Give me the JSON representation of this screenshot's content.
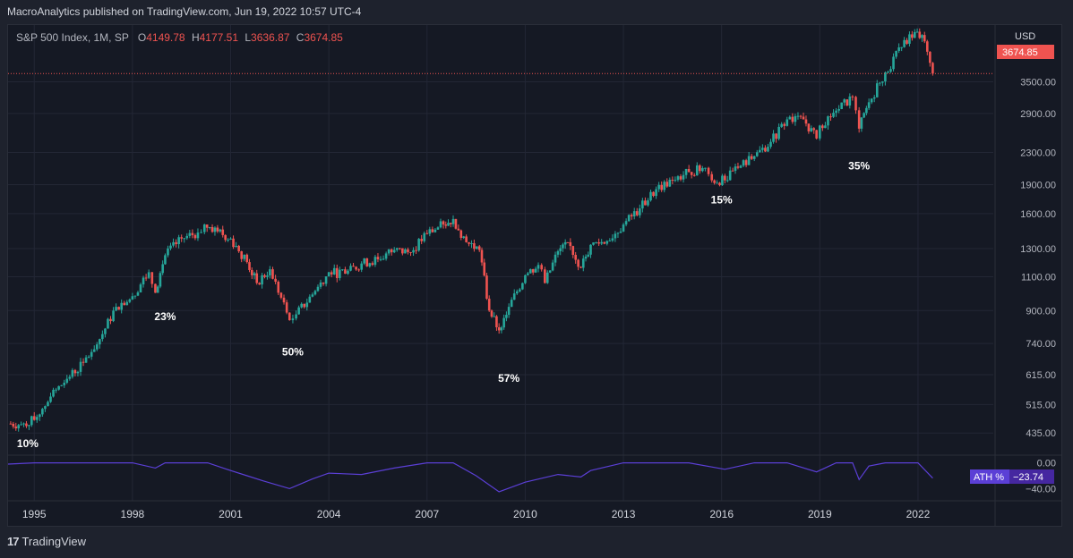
{
  "header": {
    "publisher": "MacroAnalytics published on TradingView.com, Jun 19, 2022 10:57 UTC-4"
  },
  "legend": {
    "symbol": "S&P 500 Index, 1M, SP",
    "open_label": "O",
    "open": "4149.78",
    "high_label": "H",
    "high": "4177.51",
    "low_label": "L",
    "low": "3636.87",
    "close_label": "C",
    "close": "3674.85"
  },
  "price_scale": {
    "currency": "USD",
    "last_price": "3674.85"
  },
  "ath_panel": {
    "label": "ATH %",
    "value": "−23.74"
  },
  "footer": {
    "brand": "TradingView",
    "logo": "17"
  },
  "colors": {
    "up": "#26a69a",
    "down": "#ef5350",
    "indicator": "#5b3fd6",
    "background": "#151924",
    "grid": "#232735"
  },
  "chart_data": [
    {
      "type": "candlestick",
      "title": "S&P 500 Index, 1M, SP",
      "scale": "log",
      "y_ticks": [
        "435.00",
        "515.00",
        "615.00",
        "740.00",
        "900.00",
        "1100.00",
        "1300.00",
        "1600.00",
        "1900.00",
        "2300.00",
        "2900.00",
        "3500.00"
      ],
      "x_ticks": [
        "1995",
        "1998",
        "2001",
        "2004",
        "2007",
        "2010",
        "2013",
        "2016",
        "2019",
        "2022"
      ],
      "ylim": [
        400,
        4800
      ],
      "xlim": [
        1994.2,
        2024.3
      ],
      "grid": true,
      "series": [
        {
          "x": [
            1994.2,
            1994.6,
            1995.0,
            1995.5,
            1996.0,
            1996.5,
            1997.0,
            1997.5,
            1998.0,
            1998.5,
            1998.7,
            1999.0,
            1999.5,
            2000.0,
            2000.2,
            2000.6,
            2001.0,
            2001.5,
            2001.8,
            2002.2,
            2002.8,
            2003.0,
            2003.5,
            2004.0,
            2004.5,
            2005.0,
            2005.5,
            2006.0,
            2006.5,
            2007.0,
            2007.5,
            2007.8,
            2008.2,
            2008.6,
            2008.9,
            2009.2,
            2009.5,
            2010.0,
            2010.4,
            2010.6,
            2011.0,
            2011.3,
            2011.7,
            2012.0,
            2012.5,
            2013.0,
            2013.5,
            2014.0,
            2014.5,
            2015.0,
            2015.5,
            2015.7,
            2016.1,
            2016.5,
            2017.0,
            2017.5,
            2018.0,
            2018.5,
            2018.9,
            2019.0,
            2019.5,
            2020.0,
            2020.2,
            2020.5,
            2021.0,
            2021.5,
            2021.9,
            2022.2,
            2022.45
          ],
          "close": [
            460,
            458,
            470,
            540,
            600,
            660,
            760,
            920,
            980,
            1130,
            1000,
            1250,
            1380,
            1430,
            1500,
            1440,
            1380,
            1200,
            1060,
            1150,
            850,
            880,
            990,
            1130,
            1120,
            1190,
            1220,
            1290,
            1270,
            1420,
            1500,
            1550,
            1350,
            1290,
            900,
            800,
            920,
            1110,
            1180,
            1060,
            1280,
            1350,
            1160,
            1330,
            1360,
            1500,
            1650,
            1850,
            1950,
            2050,
            2100,
            1950,
            1950,
            2100,
            2250,
            2450,
            2800,
            2800,
            2500,
            2700,
            2950,
            3200,
            2650,
            3100,
            3700,
            4300,
            4700,
            4450,
            3674.85
          ]
        }
      ],
      "annotations": [
        {
          "text": "10%",
          "x": 1994.8,
          "y": 400
        },
        {
          "text": "23%",
          "x": 1999.0,
          "y": 850
        },
        {
          "text": "50%",
          "x": 2002.9,
          "y": 690
        },
        {
          "text": "57%",
          "x": 2009.5,
          "y": 590
        },
        {
          "text": "15%",
          "x": 2016.0,
          "y": 1700
        },
        {
          "text": "35%",
          "x": 2020.2,
          "y": 2080
        }
      ],
      "price_line": 3674.85
    },
    {
      "type": "line",
      "name": "ATH %",
      "y_ticks": [
        "0.00",
        "−40.00"
      ],
      "ylim": [
        -45,
        5
      ],
      "x": [
        1994.2,
        1995,
        1996,
        1997,
        1998,
        1998.7,
        1999,
        2000,
        2000.3,
        2001,
        2001.5,
        2002,
        2002.8,
        2003.5,
        2004,
        2005,
        2006,
        2007,
        2007.8,
        2008.5,
        2009.2,
        2010,
        2011,
        2011.7,
        2012,
        2013,
        2014,
        2015,
        2016.1,
        2017,
        2018,
        2018.9,
        2019.5,
        2020,
        2020.2,
        2020.5,
        2021,
        2022,
        2022.45
      ],
      "values": [
        -2,
        0,
        0,
        0,
        0,
        -8,
        0,
        0,
        0,
        -12,
        -20,
        -28,
        -40,
        -25,
        -16,
        -18,
        -8,
        0,
        0,
        -20,
        -45,
        -30,
        -18,
        -22,
        -12,
        0,
        0,
        0,
        -10,
        0,
        0,
        -14,
        0,
        0,
        -26,
        -5,
        0,
        0,
        -23.74
      ]
    }
  ]
}
